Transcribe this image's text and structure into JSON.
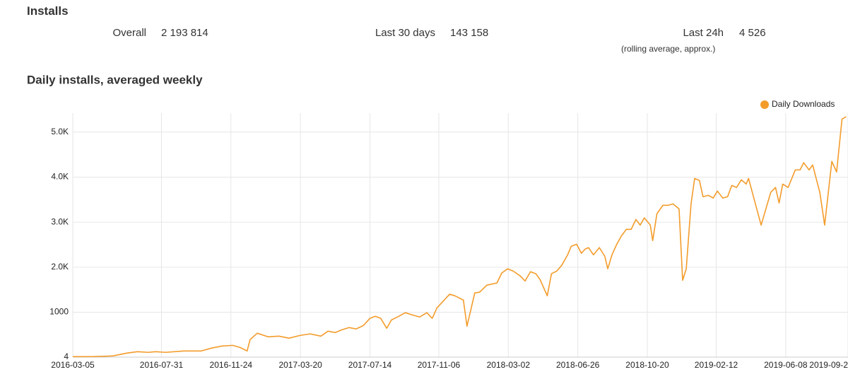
{
  "header": {
    "title": "Installs"
  },
  "stats": [
    {
      "label": "Overall",
      "value": "2 193 814"
    },
    {
      "label": "Last 30 days",
      "value": "143 158"
    },
    {
      "label": "Last 24h",
      "value": "4 526",
      "note": "(rolling average, approx.)"
    }
  ],
  "chart_data": {
    "type": "line",
    "title": "Daily installs, averaged weekly",
    "x": [
      "2016-03-05",
      "2016-04-06",
      "2016-05-11",
      "2016-06-04",
      "2016-06-21",
      "2016-07-09",
      "2016-07-21",
      "2016-08-07",
      "2016-09-06",
      "2016-10-05",
      "2016-10-23",
      "2016-11-09",
      "2016-11-27",
      "2016-12-09",
      "2016-12-21",
      "2016-12-26",
      "2017-01-07",
      "2017-01-25",
      "2017-02-12",
      "2017-03-01",
      "2017-03-19",
      "2017-04-05",
      "2017-04-23",
      "2017-05-05",
      "2017-05-17",
      "2017-05-28",
      "2017-06-09",
      "2017-06-21",
      "2017-07-03",
      "2017-07-14",
      "2017-07-23",
      "2017-08-01",
      "2017-08-11",
      "2017-08-19",
      "2017-08-31",
      "2017-09-11",
      "2017-09-23",
      "2017-10-05",
      "2017-10-17",
      "2017-10-26",
      "2017-11-03",
      "2017-11-15",
      "2017-11-24",
      "2017-12-03",
      "2017-12-17",
      "2017-12-23",
      "2018-01-05",
      "2018-01-13",
      "2018-01-25",
      "2018-02-11",
      "2018-02-19",
      "2018-03-01",
      "2018-03-10",
      "2018-03-22",
      "2018-03-30",
      "2018-04-08",
      "2018-04-17",
      "2018-04-24",
      "2018-05-06",
      "2018-05-13",
      "2018-05-22",
      "2018-05-30",
      "2018-06-09",
      "2018-06-15",
      "2018-06-24",
      "2018-07-02",
      "2018-07-08",
      "2018-07-14",
      "2018-07-22",
      "2018-08-01",
      "2018-08-10",
      "2018-08-15",
      "2018-08-22",
      "2018-08-30",
      "2018-09-07",
      "2018-09-15",
      "2018-09-23",
      "2018-10-01",
      "2018-10-08",
      "2018-10-15",
      "2018-10-25",
      "2018-10-29",
      "2018-11-05",
      "2018-11-15",
      "2018-11-24",
      "2018-12-02",
      "2018-12-12",
      "2018-12-18",
      "2018-12-24",
      "2019-01-01",
      "2019-01-07",
      "2019-01-15",
      "2019-01-21",
      "2019-01-30",
      "2019-02-07",
      "2019-02-14",
      "2019-02-23",
      "2019-03-03",
      "2019-03-10",
      "2019-03-18",
      "2019-03-26",
      "2019-04-03",
      "2019-04-07",
      "2019-04-28",
      "2019-05-14",
      "2019-05-22",
      "2019-05-28",
      "2019-06-03",
      "2019-06-12",
      "2019-06-24",
      "2019-07-02",
      "2019-07-08",
      "2019-07-17",
      "2019-07-23",
      "2019-08-04",
      "2019-08-12",
      "2019-08-24",
      "2019-09-01",
      "2019-09-10",
      "2019-09-17"
    ],
    "series": [
      {
        "name": "Daily Downloads",
        "color": "#f39c2b",
        "values": [
          15,
          16,
          30,
          95,
          125,
          110,
          125,
          110,
          140,
          140,
          205,
          250,
          265,
          220,
          140,
          395,
          535,
          455,
          470,
          425,
          485,
          520,
          470,
          580,
          550,
          610,
          660,
          630,
          705,
          865,
          910,
          865,
          645,
          830,
          910,
          990,
          940,
          895,
          990,
          865,
          1100,
          1270,
          1400,
          1365,
          1270,
          690,
          1430,
          1445,
          1600,
          1650,
          1870,
          1965,
          1915,
          1805,
          1695,
          1900,
          1855,
          1725,
          1365,
          1855,
          1915,
          2040,
          2275,
          2465,
          2510,
          2310,
          2400,
          2435,
          2275,
          2435,
          2245,
          1965,
          2275,
          2510,
          2700,
          2840,
          2840,
          3060,
          2935,
          3095,
          2935,
          2590,
          3185,
          3375,
          3375,
          3405,
          3295,
          1710,
          1965,
          3405,
          3970,
          3925,
          3565,
          3595,
          3535,
          3690,
          3535,
          3565,
          3815,
          3770,
          3940,
          3845,
          3970,
          2935,
          3660,
          3770,
          3425,
          3845,
          3770,
          4160,
          4160,
          4320,
          4160,
          4270,
          3660,
          2935,
          4350,
          4115,
          5290,
          5340
        ]
      }
    ],
    "xlim": [
      "2016-03-05",
      "2019-09-20"
    ],
    "xticks": [
      "2016-03-05",
      "2016-07-31",
      "2016-11-24",
      "2017-03-20",
      "2017-07-14",
      "2017-11-06",
      "2018-03-02",
      "2018-06-26",
      "2018-10-20",
      "2019-02-12",
      "2019-06-08",
      {
        "value": "2019-09-20",
        "label": "2019-09-2"
      }
    ],
    "ylim": [
      4,
      5420
    ],
    "yticks": [
      4,
      1000,
      {
        "value": 2000,
        "label": "2.0K"
      },
      {
        "value": 3000,
        "label": "3.0K"
      },
      {
        "value": 4000,
        "label": "4.0K"
      },
      {
        "value": 5000,
        "label": "5.0K"
      }
    ],
    "grid": true,
    "legend": "top-right"
  }
}
